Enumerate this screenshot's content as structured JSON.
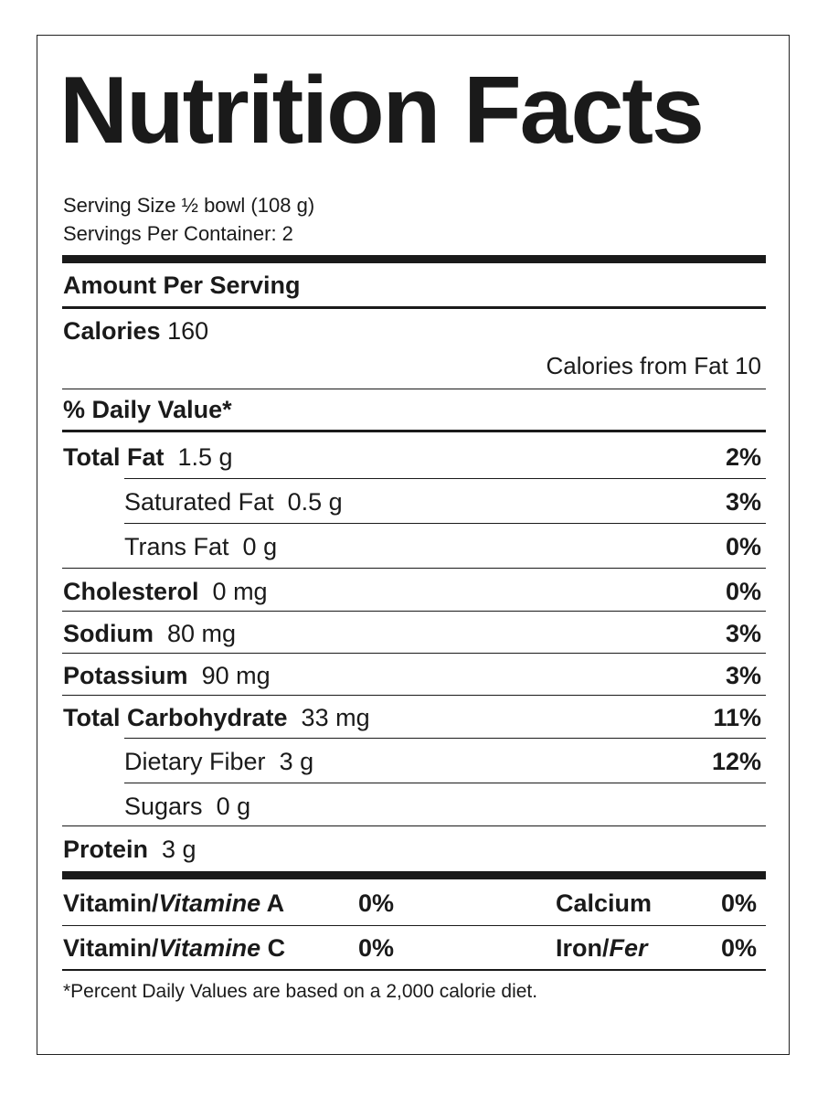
{
  "title": "Nutrition Facts",
  "serving_size": "Serving Size ½ bowl (108 g)",
  "servings_per_container": "Servings Per Container: 2",
  "amount_per_serving": "Amount Per Serving",
  "calories": {
    "label": "Calories",
    "value": "160"
  },
  "calories_from_fat": "Calories from Fat 10",
  "daily_value_header": "% Daily Value*",
  "nutrients": [
    {
      "name": "Total Fat",
      "amount": "1.5 g",
      "dv": "2%"
    },
    {
      "name": "Saturated Fat",
      "amount": "0.5 g",
      "dv": "3%"
    },
    {
      "name": "Trans Fat",
      "amount": "0 g",
      "dv": "0%"
    },
    {
      "name": "Cholesterol",
      "amount": "0 mg",
      "dv": "0%"
    },
    {
      "name": "Sodium",
      "amount": "80 mg",
      "dv": "3%"
    },
    {
      "name": "Potassium",
      "amount": "90 mg",
      "dv": "3%"
    },
    {
      "name": "Total Carbohydrate",
      "amount": "33 mg",
      "dv": "11%"
    },
    {
      "name": "Dietary Fiber",
      "amount": "3 g",
      "dv": "12%"
    },
    {
      "name": "Sugars",
      "amount": "0 g",
      "dv": ""
    },
    {
      "name": "Protein",
      "amount": "3 g",
      "dv": ""
    }
  ],
  "vitamins": {
    "vitamin_a": {
      "prefix": "Vitamin/",
      "italic": "Vitamine",
      "suffix": " A",
      "dv": "0%"
    },
    "vitamin_c": {
      "prefix": "Vitamin/",
      "italic": "Vitamine",
      "suffix": " C",
      "dv": "0%"
    },
    "calcium": {
      "label": "Calcium",
      "dv": "0%"
    },
    "iron": {
      "prefix": "Iron/",
      "italic": "Fer",
      "dv": "0%"
    }
  },
  "footnote": "*Percent Daily Values are based on a 2,000 calorie diet."
}
